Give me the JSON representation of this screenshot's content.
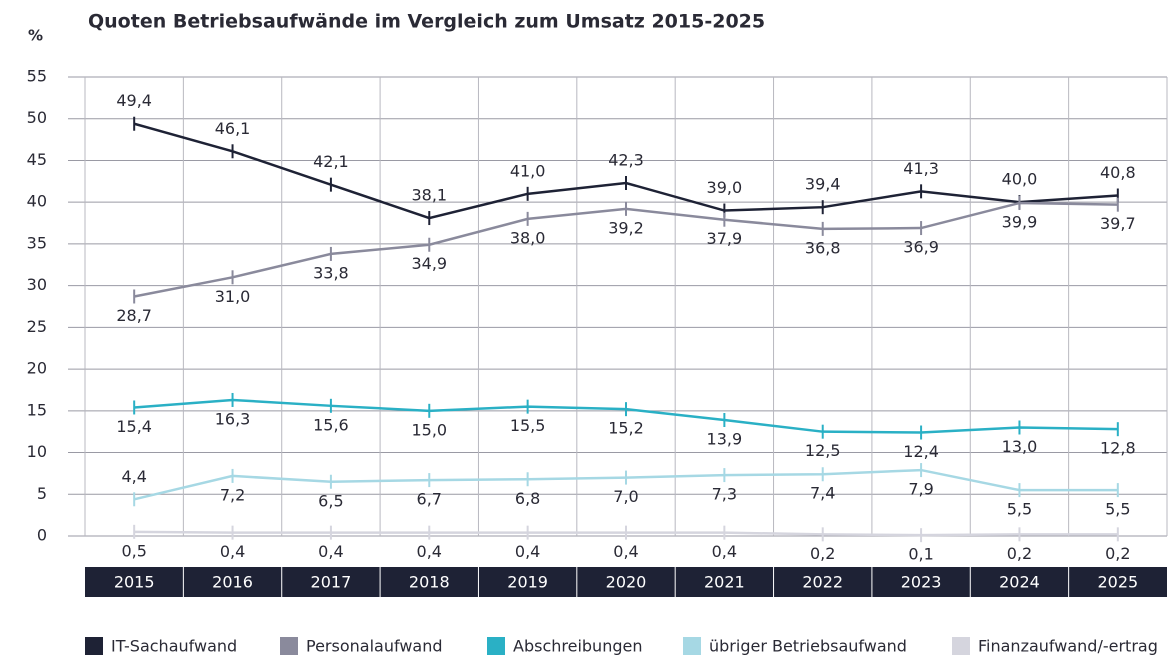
{
  "chart_data": {
    "type": "line",
    "title": "Quoten Betriebsaufwände im Vergleich zum Umsatz 2015-2025",
    "y_label": "%",
    "categories": [
      "2015",
      "2016",
      "2017",
      "2018",
      "2019",
      "2020",
      "2021",
      "2022",
      "2023",
      "2024",
      "2025"
    ],
    "ylim": [
      0,
      55
    ],
    "yticks": [
      0,
      5,
      10,
      15,
      20,
      25,
      30,
      35,
      40,
      45,
      50,
      55
    ],
    "grid": true,
    "legend": "bottom",
    "series": [
      {
        "name": "IT-Sachaufwand",
        "color": "#1e2235",
        "values": [
          49.4,
          46.1,
          42.1,
          38.1,
          41.0,
          42.3,
          39.0,
          39.4,
          41.3,
          40.0,
          40.8
        ],
        "value_labels": [
          "49,4",
          "46,1",
          "42,1",
          "38,1",
          "41,0",
          "42,3",
          "39,0",
          "39,4",
          "41,3",
          "40,0",
          "40,8"
        ]
      },
      {
        "name": "Personalaufwand",
        "color": "#8a8a9c",
        "values": [
          28.7,
          31.0,
          33.8,
          34.9,
          38.0,
          39.2,
          37.9,
          36.8,
          36.9,
          39.9,
          39.7
        ],
        "value_labels": [
          "28,7",
          "31,0",
          "33,8",
          "34,9",
          "38,0",
          "39,2",
          "37,9",
          "36,8",
          "36,9",
          "39,9",
          "39,7"
        ]
      },
      {
        "name": "Abschreibungen",
        "color": "#2ab0c5",
        "values": [
          15.4,
          16.3,
          15.6,
          15.0,
          15.5,
          15.2,
          13.9,
          12.5,
          12.4,
          13.0,
          12.8
        ],
        "value_labels": [
          "15,4",
          "16,3",
          "15,6",
          "15,0",
          "15,5",
          "15,2",
          "13,9",
          "12,5",
          "12,4",
          "13,0",
          "12,8"
        ]
      },
      {
        "name": "übriger Betriebsaufwand",
        "color": "#a6d8e4",
        "values": [
          4.4,
          7.2,
          6.5,
          6.7,
          6.8,
          7.0,
          7.3,
          7.4,
          7.9,
          5.5,
          5.5
        ],
        "value_labels": [
          "4,4",
          "7,2",
          "6,5",
          "6,7",
          "6,8",
          "7,0",
          "7,3",
          "7,4",
          "7,9",
          "5,5",
          "5,5"
        ]
      },
      {
        "name": "Finanzaufwand/-ertrag",
        "color": "#d5d5de",
        "values": [
          0.5,
          0.4,
          0.4,
          0.4,
          0.4,
          0.4,
          0.4,
          0.2,
          0.1,
          0.2,
          0.2
        ],
        "value_labels": [
          "0,5",
          "0,4",
          "0,4",
          "0,4",
          "0,4",
          "0,4",
          "0,4",
          "0,2",
          "0,1",
          "0,2",
          "0,2"
        ]
      }
    ]
  }
}
